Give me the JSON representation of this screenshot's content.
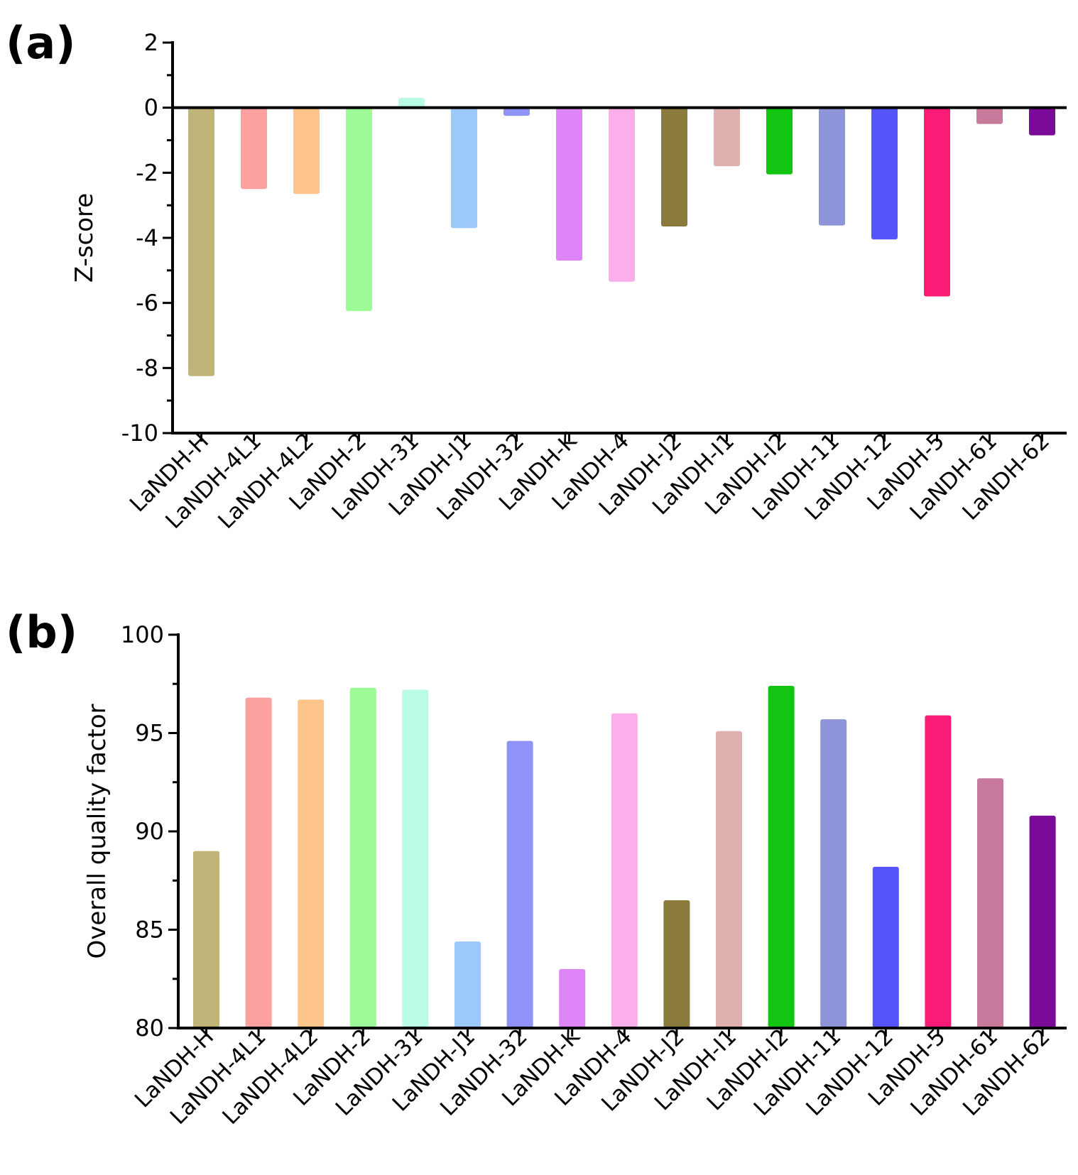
{
  "chart_data": [
    {
      "panel_label": "(a)",
      "type": "bar",
      "title": "",
      "xlabel": "",
      "ylabel": "Z-score",
      "ylim": [
        -10,
        2
      ],
      "yticks": [
        2,
        0,
        -2,
        -4,
        -6,
        -8,
        -10
      ],
      "grid": false,
      "categories": [
        "LaNDH-H",
        "LaNDH-4L1",
        "LaNDH-4L2",
        "LaNDH-2",
        "LaNDH-31",
        "LaNDH-J1",
        "LaNDH-32",
        "LaNDH-K",
        "LaNDH-4",
        "LaNDH-J2",
        "LaNDH-I1",
        "LaNDH-I2",
        "LaNDH-11",
        "LaNDH-12",
        "LaNDH-5",
        "LaNDH-61",
        "LaNDH-62"
      ],
      "values": [
        -8.25,
        -2.5,
        -2.65,
        -6.25,
        0.3,
        -3.7,
        -0.25,
        -4.7,
        -5.35,
        -3.65,
        -1.8,
        -2.05,
        -3.62,
        -4.05,
        -5.8,
        -0.5,
        -0.85
      ]
    },
    {
      "panel_label": "(b)",
      "type": "bar",
      "title": "",
      "xlabel": "",
      "ylabel": "Overall quality factor",
      "ylim": [
        80,
        100
      ],
      "yticks": [
        100,
        95,
        90,
        85,
        80
      ],
      "grid": false,
      "categories": [
        "LaNDH-H",
        "LaNDH-4L1",
        "LaNDH-4L2",
        "LaNDH-2",
        "LaNDH-31",
        "LaNDH-J1",
        "LaNDH-32",
        "LaNDH-K",
        "LaNDH-4",
        "LaNDH-J2",
        "LaNDH-I1",
        "LaNDH-I2",
        "LaNDH-11",
        "LaNDH-12",
        "LaNDH-5",
        "LaNDH-61",
        "LaNDH-62"
      ],
      "values": [
        89.0,
        96.8,
        96.7,
        97.3,
        97.2,
        84.4,
        94.6,
        83.0,
        96.0,
        86.5,
        95.1,
        97.4,
        95.7,
        88.2,
        95.9,
        92.7,
        90.8
      ]
    }
  ],
  "bar_colors": [
    "#c0b478",
    "#fca0a0",
    "#fdc58a",
    "#9cfb97",
    "#b9fbe4",
    "#9cc9fa",
    "#8f93f8",
    "#de86f7",
    "#fbaee9",
    "#8a7a3c",
    "#deb0b0",
    "#12c512",
    "#8e94d8",
    "#5454fa",
    "#fa1b77",
    "#c87a9c",
    "#7a0a98"
  ],
  "axis_color": "#000000"
}
